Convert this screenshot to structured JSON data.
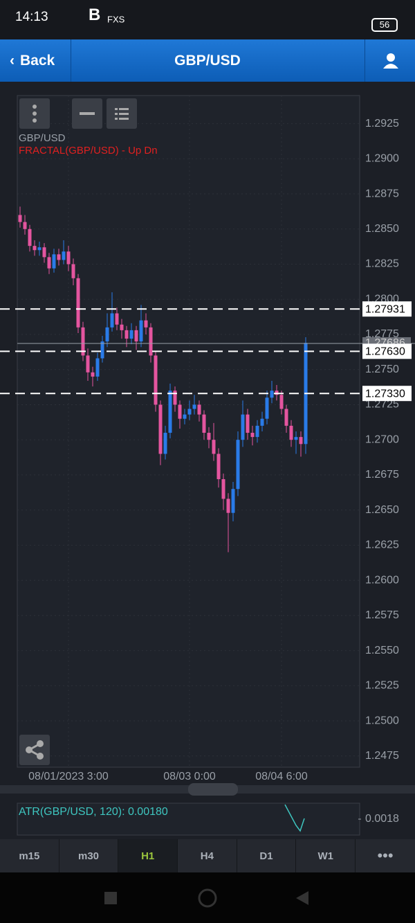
{
  "status_bar": {
    "time": "14:13",
    "app": "FXS",
    "battery": "56"
  },
  "header": {
    "back": "Back",
    "title": "GBP/USD"
  },
  "chart_data": {
    "type": "candlestick",
    "symbol": "GBP/USD",
    "indicator": "FRACTAL(GBP/USD) - Up Dn",
    "categories": [
      null,
      null,
      null,
      null,
      null,
      null,
      null,
      null,
      null,
      null,
      "08/01/2023 3:00",
      null,
      null,
      null,
      null,
      null,
      null,
      null,
      null,
      null,
      null,
      null,
      null,
      null,
      null,
      null,
      null,
      null,
      null,
      null,
      null,
      null,
      null,
      null,
      null,
      "08/03 0:00",
      null,
      null,
      null,
      null,
      null,
      null,
      null,
      null,
      null,
      null,
      null,
      null,
      null,
      null,
      null,
      null,
      null,
      null,
      "08/04 6:00",
      null,
      null,
      null,
      null,
      null
    ],
    "open": [
      1.286,
      1.2855,
      1.285,
      1.2838,
      1.2835,
      1.2837,
      1.283,
      1.2822,
      1.2832,
      1.2828,
      1.2834,
      1.2825,
      1.2815,
      1.278,
      1.276,
      1.2748,
      1.2745,
      1.2758,
      1.277,
      1.278,
      1.279,
      1.2782,
      1.2778,
      1.2772,
      1.2778,
      1.277,
      1.2785,
      1.278,
      1.276,
      1.2725,
      1.269,
      1.2705,
      1.2735,
      1.2725,
      1.2715,
      1.2718,
      1.2722,
      1.2725,
      1.2718,
      1.2705,
      1.27,
      1.269,
      1.2672,
      1.2658,
      1.2648,
      1.2665,
      1.27,
      1.2718,
      1.2705,
      1.2702,
      1.271,
      1.2715,
      1.273,
      1.2735,
      1.2732,
      1.2722,
      1.271,
      1.27,
      1.2702,
      1.2697
    ],
    "high": [
      1.2866,
      1.286,
      1.2853,
      1.2842,
      1.2841,
      1.284,
      1.2833,
      1.2836,
      1.2836,
      1.2842,
      1.2838,
      1.2829,
      1.2818,
      1.2784,
      1.2765,
      1.2752,
      1.2762,
      1.2774,
      1.279,
      1.2805,
      1.2794,
      1.2786,
      1.2781,
      1.2783,
      1.2781,
      1.2796,
      1.279,
      1.2783,
      1.2763,
      1.2728,
      1.271,
      1.274,
      1.2738,
      1.2728,
      1.2722,
      1.2728,
      1.2732,
      1.2728,
      1.2721,
      1.2709,
      1.2712,
      1.2694,
      1.2676,
      1.2662,
      1.267,
      1.2706,
      1.2728,
      1.2722,
      1.271,
      1.2714,
      1.272,
      1.2735,
      1.2742,
      1.2739,
      1.2735,
      1.2725,
      1.2714,
      1.2706,
      1.2706,
      1.2773
    ],
    "low": [
      1.2851,
      1.2846,
      1.2834,
      1.2831,
      1.2831,
      1.2826,
      1.2818,
      1.2819,
      1.2824,
      1.2825,
      1.282,
      1.281,
      1.2776,
      1.2756,
      1.2742,
      1.2738,
      1.2742,
      1.2755,
      1.2766,
      1.2777,
      1.2778,
      1.2772,
      1.2766,
      1.2768,
      1.2764,
      1.2766,
      1.2775,
      1.2755,
      1.272,
      1.2682,
      1.2686,
      1.2701,
      1.272,
      1.2708,
      1.2711,
      1.2714,
      1.2718,
      1.2713,
      1.27,
      1.2694,
      1.2685,
      1.2666,
      1.265,
      1.262,
      1.2642,
      1.266,
      1.2695,
      1.27,
      1.2696,
      1.2698,
      1.2706,
      1.2711,
      1.2726,
      1.2728,
      1.2718,
      1.2705,
      1.2695,
      1.269,
      1.2688,
      1.269
    ],
    "close": [
      1.2855,
      1.285,
      1.2838,
      1.2835,
      1.2837,
      1.283,
      1.2822,
      1.2832,
      1.2828,
      1.2834,
      1.2825,
      1.2815,
      1.278,
      1.276,
      1.2748,
      1.2745,
      1.2758,
      1.277,
      1.278,
      1.279,
      1.2782,
      1.2778,
      1.2772,
      1.2778,
      1.277,
      1.2785,
      1.278,
      1.276,
      1.2725,
      1.269,
      1.2705,
      1.2735,
      1.2725,
      1.2715,
      1.2718,
      1.2722,
      1.2725,
      1.2718,
      1.2705,
      1.27,
      1.269,
      1.2672,
      1.2658,
      1.2648,
      1.2665,
      1.27,
      1.2718,
      1.2705,
      1.2702,
      1.271,
      1.2715,
      1.273,
      1.2735,
      1.2732,
      1.2722,
      1.271,
      1.27,
      1.2702,
      1.2697,
      1.2769
    ],
    "up_color": "#2a7be8",
    "down_color": "#e4559f",
    "ylim": [
      1.2467,
      1.2945
    ],
    "yticks": [
      1.2925,
      {
        "value": 1.29,
        "label": "1.2900"
      },
      1.2875,
      {
        "value": 1.285,
        "label": "1.2850"
      },
      1.2825,
      {
        "value": 1.28,
        "label": "1.2800"
      },
      1.2775,
      {
        "value": 1.275,
        "label": "1.2750"
      },
      1.2725,
      {
        "value": 1.27,
        "label": "1.2700"
      },
      1.2675,
      {
        "value": 1.265,
        "label": "1.2650"
      },
      1.2625,
      {
        "value": 1.26,
        "label": "1.2600"
      },
      1.2575,
      {
        "value": 1.255,
        "label": "1.2550"
      },
      1.2525,
      {
        "value": 1.25,
        "label": "1.2500"
      },
      1.2475
    ],
    "grid": true,
    "current_price": 1.27686,
    "levels": [
      {
        "value": 1.27931,
        "label": "1.27931"
      },
      {
        "value": 1.2763,
        "label": "1.27630"
      },
      {
        "value": 1.2733,
        "label": "1.27330"
      }
    ]
  },
  "atr": {
    "label": "ATR(GBP/USD, 120): 0.00180",
    "ytick": {
      "value": 0.0018,
      "label": "0.0018"
    }
  },
  "timeframes": [
    "m15",
    "m30",
    "H1",
    "H4",
    "D1",
    "W1"
  ],
  "active_timeframe": "H1"
}
